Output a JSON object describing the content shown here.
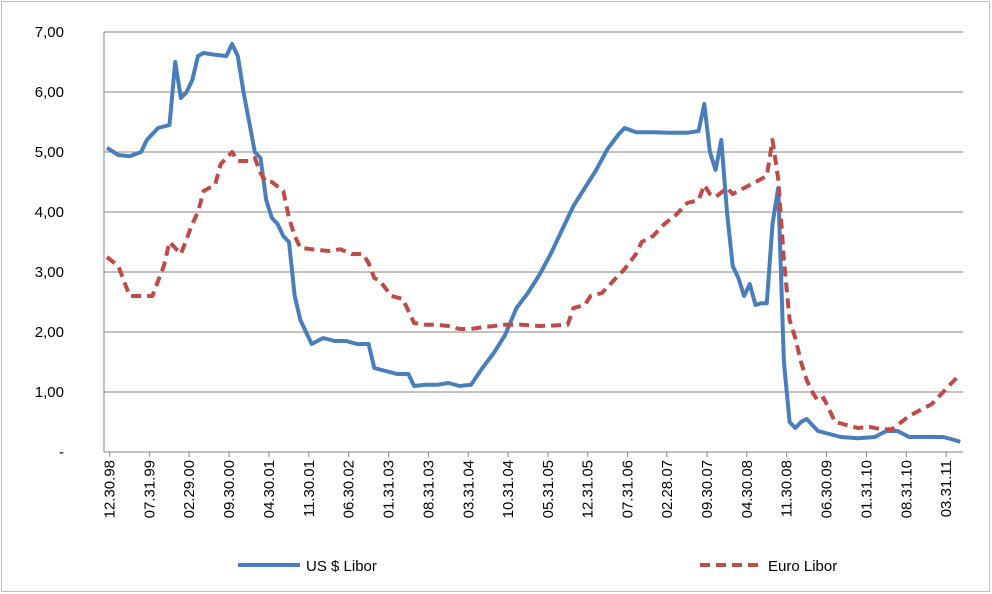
{
  "chart_data": {
    "type": "line",
    "xlim": [
      "11.30.98",
      "06.30.11"
    ],
    "xticks": [
      "12.30.98",
      "07.31.99",
      "02.29.00",
      "09.30.00",
      "04.30.01",
      "11.30.01",
      "06.30.02",
      "01.31.03",
      "08.31.03",
      "03.31.04",
      "10.31.04",
      "05.31.05",
      "12.31.05",
      "07.31.06",
      "02.28.07",
      "09.30.07",
      "04.30.08",
      "11.30.08",
      "06.30.09",
      "01.31.10",
      "08.31.10",
      "03.31.11"
    ],
    "ylim": [
      0,
      7
    ],
    "yticks": [
      {
        "value": 0,
        "label": "-"
      },
      {
        "value": 1,
        "label": "1,00"
      },
      {
        "value": 2,
        "label": "2,00"
      },
      {
        "value": 3,
        "label": "3,00"
      },
      {
        "value": 4,
        "label": "4,00"
      },
      {
        "value": 5,
        "label": "5,00"
      },
      {
        "value": 6,
        "label": "6,00"
      },
      {
        "value": 7,
        "label": "7,00"
      }
    ],
    "grid": true,
    "series": [
      {
        "name": "US $ Libor",
        "color": "#4a7ebb",
        "dash": false,
        "x": [
          "12.15.98",
          "02.15.99",
          "04.15.99",
          "06.15.99",
          "07.15.99",
          "09.15.99",
          "11.15.99",
          "12.15.99",
          "01.15.00",
          "02.15.00",
          "03.15.00",
          "04.15.00",
          "05.15.00",
          "07.15.00",
          "09.15.00",
          "10.15.00",
          "11.15.00",
          "12.15.00",
          "01.15.01",
          "02.15.01",
          "03.15.01",
          "04.15.01",
          "05.15.01",
          "06.15.01",
          "07.15.01",
          "08.15.01",
          "09.15.01",
          "10.15.01",
          "11.15.01",
          "12.15.01",
          "02.15.02",
          "04.15.02",
          "06.15.02",
          "08.15.02",
          "10.15.02",
          "11.15.02",
          "01.15.03",
          "03.15.03",
          "05.15.03",
          "06.15.03",
          "08.15.03",
          "10.15.03",
          "12.15.03",
          "02.15.04",
          "04.15.04",
          "06.15.04",
          "08.15.04",
          "10.15.04",
          "12.15.04",
          "02.15.05",
          "04.15.05",
          "06.15.05",
          "08.15.05",
          "10.15.05",
          "12.15.05",
          "02.15.06",
          "04.15.06",
          "06.15.06",
          "07.15.06",
          "09.15.06",
          "12.15.06",
          "03.15.07",
          "06.15.07",
          "08.15.07",
          "09.15.07",
          "10.15.07",
          "11.15.07",
          "12.15.07",
          "01.15.08",
          "02.15.08",
          "03.15.08",
          "04.15.08",
          "05.15.08",
          "06.15.08",
          "07.15.08",
          "08.15.08",
          "09.15.08",
          "10.15.08",
          "11.15.08",
          "12.15.08",
          "01.15.09",
          "02.15.09",
          "03.15.09",
          "04.15.09",
          "05.15.09",
          "07.15.09",
          "09.15.09",
          "12.15.09",
          "03.15.10",
          "05.15.10",
          "07.15.10",
          "09.15.10",
          "12.15.10",
          "03.15.11",
          "05.15.11",
          "06.15.11"
        ],
        "values": [
          5.07,
          4.95,
          4.93,
          5.0,
          5.2,
          5.4,
          5.45,
          6.5,
          5.9,
          6.0,
          6.2,
          6.6,
          6.65,
          6.62,
          6.6,
          6.8,
          6.6,
          6.0,
          5.5,
          5.0,
          4.9,
          4.2,
          3.9,
          3.8,
          3.6,
          3.5,
          2.6,
          2.2,
          2.0,
          1.8,
          1.9,
          1.85,
          1.85,
          1.8,
          1.8,
          1.4,
          1.35,
          1.3,
          1.3,
          1.1,
          1.12,
          1.12,
          1.15,
          1.1,
          1.12,
          1.4,
          1.65,
          1.95,
          2.4,
          2.65,
          2.95,
          3.3,
          3.7,
          4.1,
          4.4,
          4.7,
          5.05,
          5.3,
          5.4,
          5.33,
          5.33,
          5.32,
          5.32,
          5.35,
          5.8,
          5.0,
          4.7,
          5.2,
          4.0,
          3.1,
          2.9,
          2.6,
          2.8,
          2.45,
          2.48,
          2.48,
          3.8,
          4.4,
          1.5,
          0.5,
          0.4,
          0.5,
          0.55,
          0.45,
          0.35,
          0.3,
          0.25,
          0.23,
          0.25,
          0.35,
          0.35,
          0.25,
          0.25,
          0.25,
          0.2,
          0.17
        ]
      },
      {
        "name": "Euro Libor",
        "color": "#be4b48",
        "dash": true,
        "x": [
          "12.15.98",
          "02.15.99",
          "04.15.99",
          "06.15.99",
          "08.15.99",
          "10.15.99",
          "11.15.99",
          "12.15.99",
          "01.15.00",
          "02.15.00",
          "03.15.00",
          "04.15.00",
          "05.15.00",
          "07.15.00",
          "08.15.00",
          "09.15.00",
          "10.15.00",
          "11.15.00",
          "01.15.01",
          "02.15.01",
          "03.15.01",
          "04.15.01",
          "05.15.01",
          "07.15.01",
          "08.15.01",
          "09.15.01",
          "10.15.01",
          "12.15.01",
          "03.15.02",
          "05.15.02",
          "07.15.02",
          "09.15.02",
          "10.15.02",
          "11.15.02",
          "12.15.02",
          "02.15.03",
          "04.15.03",
          "06.15.03",
          "08.15.03",
          "10.15.03",
          "12.15.03",
          "02.15.04",
          "04.15.04",
          "06.15.04",
          "08.15.04",
          "10.15.04",
          "01.15.05",
          "04.15.05",
          "07.15.05",
          "09.15.05",
          "10.15.05",
          "12.15.05",
          "01.15.06",
          "03.15.06",
          "05.15.06",
          "07.15.06",
          "09.15.06",
          "10.15.06",
          "12.15.06",
          "02.15.07",
          "04.15.07",
          "06.15.07",
          "08.15.07",
          "09.15.07",
          "10.15.07",
          "11.15.07",
          "01.15.08",
          "02.15.08",
          "04.15.08",
          "05.15.08",
          "06.15.08",
          "08.15.08",
          "09.15.08",
          "10.15.08",
          "11.15.08",
          "12.15.08",
          "01.15.09",
          "02.15.09",
          "03.15.09",
          "04.15.09",
          "05.15.09",
          "06.15.09",
          "08.15.09",
          "10.15.09",
          "12.15.09",
          "02.15.10",
          "04.15.10",
          "06.15.10",
          "07.15.10",
          "09.15.10",
          "11.15.10",
          "01.15.11",
          "03.15.11",
          "05.15.11",
          "06.15.11"
        ],
        "values": [
          3.25,
          3.1,
          2.6,
          2.6,
          2.6,
          3.1,
          3.5,
          3.4,
          3.3,
          3.55,
          3.8,
          4.0,
          4.35,
          4.45,
          4.8,
          4.9,
          5.0,
          4.85,
          4.85,
          4.9,
          4.65,
          4.5,
          4.5,
          4.35,
          3.9,
          3.6,
          3.4,
          3.38,
          3.35,
          3.38,
          3.3,
          3.3,
          3.15,
          2.9,
          2.85,
          2.6,
          2.55,
          2.15,
          2.12,
          2.12,
          2.1,
          2.05,
          2.05,
          2.08,
          2.1,
          2.12,
          2.12,
          2.1,
          2.11,
          2.12,
          2.4,
          2.45,
          2.6,
          2.65,
          2.85,
          3.05,
          3.3,
          3.5,
          3.6,
          3.8,
          3.95,
          4.15,
          4.2,
          4.45,
          4.3,
          4.25,
          4.4,
          4.3,
          4.4,
          4.45,
          4.5,
          4.6,
          5.2,
          4.55,
          3.2,
          2.2,
          1.9,
          1.5,
          1.2,
          1.0,
          0.85,
          0.9,
          0.5,
          0.45,
          0.4,
          0.42,
          0.38,
          0.38,
          0.45,
          0.6,
          0.7,
          0.8,
          1.0,
          1.2,
          1.3
        ]
      }
    ]
  }
}
